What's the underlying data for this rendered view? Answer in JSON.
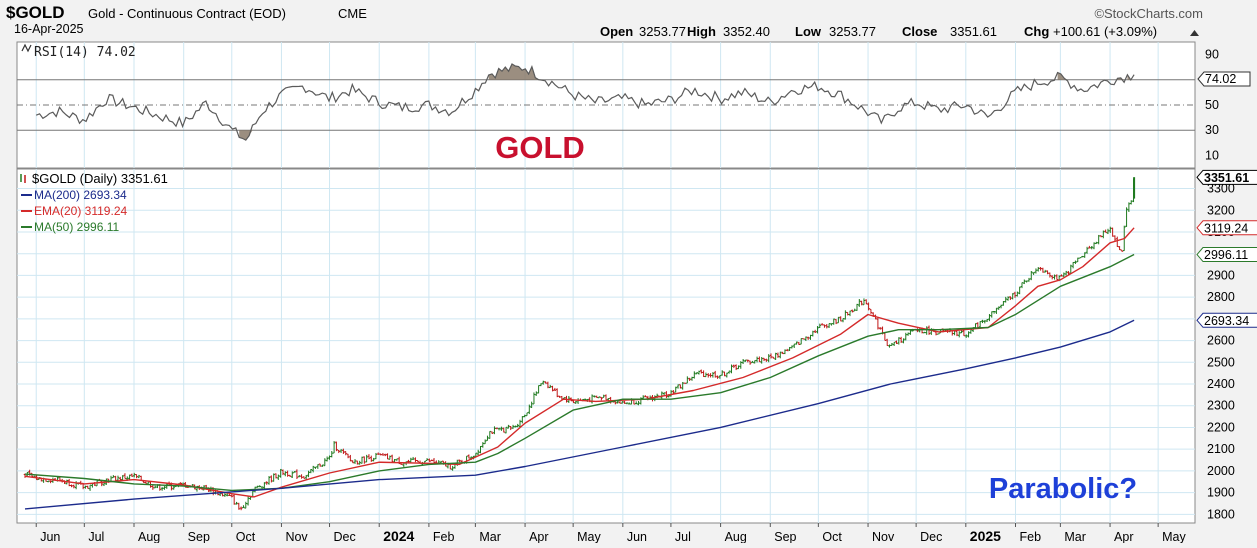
{
  "header": {
    "symbol": "$GOLD",
    "description": "Gold - Continuous Contract (EOD)",
    "exchange": "CME",
    "date": "16-Apr-2025",
    "watermark": "©StockCharts.com",
    "open_label": "Open",
    "open": "3253.77",
    "high_label": "High",
    "high": "3352.40",
    "low_label": "Low",
    "low": "3253.77",
    "close_label": "Close",
    "close": "3351.61",
    "chg_label": "Chg",
    "chg": "+100.61 (+3.09%)"
  },
  "annotations": {
    "title": "GOLD",
    "question": "Parabolic?"
  },
  "colors": {
    "background": "#f2f2f2",
    "plot_bg": "#ffffff",
    "grid": "#cfe7f2",
    "price_up": "#1f7a1f",
    "price_down": "#c01818",
    "ma200": "#1c2b8c",
    "ema20": "#d42a2a",
    "ma50": "#2b7a2b",
    "rsi": "#5a5a5a",
    "rsi_fill": "#8a7a6a",
    "gold_text": "#c8102e",
    "parabolic_text": "#1e40d8"
  },
  "chart_data": [
    {
      "type": "line",
      "title": "RSI(14) 74.02",
      "series": [
        {
          "name": "RSI(14)",
          "last": "74.02",
          "x": [
            "2023-06-01",
            "2023-06-15",
            "2023-07-01",
            "2023-07-15",
            "2023-08-01",
            "2023-08-15",
            "2023-09-01",
            "2023-09-15",
            "2023-10-01",
            "2023-10-10",
            "2023-10-20",
            "2023-11-01",
            "2023-11-15",
            "2023-12-01",
            "2023-12-15",
            "2024-01-01",
            "2024-01-15",
            "2024-02-01",
            "2024-02-15",
            "2024-03-01",
            "2024-03-10",
            "2024-03-20",
            "2024-04-01",
            "2024-04-15",
            "2024-05-01",
            "2024-05-15",
            "2024-06-01",
            "2024-06-15",
            "2024-07-01",
            "2024-07-15",
            "2024-08-01",
            "2024-08-15",
            "2024-09-01",
            "2024-09-15",
            "2024-10-01",
            "2024-10-15",
            "2024-11-01",
            "2024-11-10",
            "2024-11-20",
            "2024-12-01",
            "2024-12-15",
            "2025-01-01",
            "2025-01-15",
            "2025-02-01",
            "2025-02-15",
            "2025-03-01",
            "2025-03-15",
            "2025-04-01",
            "2025-04-08",
            "2025-04-16"
          ],
          "values": [
            42,
            45,
            38,
            55,
            48,
            42,
            35,
            52,
            30,
            22,
            45,
            58,
            65,
            55,
            62,
            52,
            48,
            50,
            45,
            62,
            75,
            78,
            80,
            70,
            58,
            52,
            55,
            50,
            54,
            62,
            55,
            60,
            52,
            62,
            65,
            58,
            44,
            36,
            48,
            52,
            46,
            50,
            40,
            60,
            68,
            72,
            62,
            70,
            72,
            74.02
          ]
        }
      ],
      "ylim": [
        0,
        100
      ],
      "yticks": [
        10,
        30,
        50,
        70,
        90
      ],
      "reference_lines": [
        30,
        50,
        70
      ],
      "last_value_label": "74.02"
    },
    {
      "type": "line",
      "title": "$GOLD (Daily) 3351.61",
      "legend_placement": "top-left",
      "x_tick_labels": [
        "Jun",
        "Jul",
        "Aug",
        "Sep",
        "Oct",
        "Nov",
        "Dec",
        "2024",
        "Feb",
        "Mar",
        "Apr",
        "May",
        "Jun",
        "Jul",
        "Aug",
        "Sep",
        "Oct",
        "Nov",
        "Dec",
        "2025",
        "Feb",
        "Mar",
        "Apr",
        "May"
      ],
      "x_tick_dates": [
        "2023-06-01",
        "2023-07-01",
        "2023-08-01",
        "2023-09-01",
        "2023-10-01",
        "2023-11-01",
        "2023-12-01",
        "2024-01-01",
        "2024-02-01",
        "2024-03-01",
        "2024-04-01",
        "2024-05-01",
        "2024-06-01",
        "2024-07-01",
        "2024-08-01",
        "2024-09-01",
        "2024-10-01",
        "2024-11-01",
        "2024-12-01",
        "2025-01-01",
        "2025-02-01",
        "2025-03-01",
        "2025-04-01",
        "2025-05-01"
      ],
      "bold_x_ticks": [
        "2024",
        "2025"
      ],
      "ylim": [
        1760,
        3390
      ],
      "yticks": [
        1800,
        1900,
        2000,
        2100,
        2200,
        2300,
        2400,
        2500,
        2600,
        2700,
        2800,
        2900,
        3000,
        3100,
        3200,
        3300
      ],
      "grid": true,
      "series": [
        {
          "name": "$GOLD (Daily)",
          "legend_label": "$GOLD (Daily) 3351.61",
          "last_label": "3351.61",
          "x": [
            "2023-05-25",
            "2023-06-01",
            "2023-06-15",
            "2023-07-01",
            "2023-07-15",
            "2023-08-01",
            "2023-08-15",
            "2023-09-01",
            "2023-09-15",
            "2023-10-01",
            "2023-10-06",
            "2023-10-15",
            "2023-11-01",
            "2023-11-15",
            "2023-12-01",
            "2023-12-04",
            "2023-12-15",
            "2024-01-01",
            "2024-01-15",
            "2024-02-01",
            "2024-02-15",
            "2024-03-01",
            "2024-03-10",
            "2024-03-25",
            "2024-04-01",
            "2024-04-12",
            "2024-04-22",
            "2024-05-01",
            "2024-05-20",
            "2024-06-01",
            "2024-06-15",
            "2024-07-01",
            "2024-07-17",
            "2024-08-01",
            "2024-08-15",
            "2024-09-01",
            "2024-09-15",
            "2024-10-01",
            "2024-10-15",
            "2024-10-30",
            "2024-11-14",
            "2024-12-01",
            "2024-12-15",
            "2025-01-01",
            "2025-01-15",
            "2025-02-01",
            "2025-02-15",
            "2025-03-01",
            "2025-03-15",
            "2025-04-01",
            "2025-04-08",
            "2025-04-11",
            "2025-04-14",
            "2025-04-16"
          ],
          "values": [
            1985,
            1965,
            1960,
            1925,
            1960,
            1975,
            1925,
            1935,
            1920,
            1875,
            1820,
            1915,
            1995,
            1975,
            2060,
            2120,
            2040,
            2070,
            2040,
            2045,
            2020,
            2080,
            2180,
            2200,
            2260,
            2420,
            2345,
            2320,
            2340,
            2310,
            2330,
            2360,
            2450,
            2440,
            2500,
            2520,
            2570,
            2660,
            2700,
            2790,
            2570,
            2650,
            2640,
            2630,
            2710,
            2820,
            2940,
            2880,
            3000,
            3120,
            2990,
            3210,
            3240,
            3351.61
          ]
        },
        {
          "name": "EMA(20)",
          "legend_label": "EMA(20) 3119.24",
          "last_label": "3119.24",
          "x": [
            "2023-05-25",
            "2023-07-01",
            "2023-08-01",
            "2023-09-01",
            "2023-10-01",
            "2023-10-15",
            "2023-11-01",
            "2023-12-01",
            "2024-01-01",
            "2024-02-01",
            "2024-02-20",
            "2024-03-15",
            "2024-04-01",
            "2024-04-25",
            "2024-05-15",
            "2024-06-15",
            "2024-07-15",
            "2024-08-15",
            "2024-09-15",
            "2024-10-15",
            "2024-11-01",
            "2024-11-20",
            "2024-12-15",
            "2025-01-15",
            "2025-02-01",
            "2025-02-15",
            "2025-03-01",
            "2025-03-15",
            "2025-04-01",
            "2025-04-10",
            "2025-04-16"
          ],
          "values": [
            1975,
            1940,
            1960,
            1935,
            1895,
            1880,
            1925,
            1990,
            2040,
            2035,
            2030,
            2110,
            2220,
            2330,
            2320,
            2330,
            2370,
            2430,
            2520,
            2630,
            2720,
            2680,
            2640,
            2660,
            2760,
            2850,
            2880,
            2940,
            3050,
            3070,
            3119.24
          ]
        },
        {
          "name": "MA(50)",
          "legend_label": "MA(50) 2996.11",
          "last_label": "2996.11",
          "x": [
            "2023-05-25",
            "2023-07-01",
            "2023-08-01",
            "2023-09-01",
            "2023-10-01",
            "2023-11-01",
            "2023-12-01",
            "2024-01-01",
            "2024-02-01",
            "2024-03-01",
            "2024-03-15",
            "2024-04-01",
            "2024-05-01",
            "2024-06-01",
            "2024-07-01",
            "2024-08-01",
            "2024-09-01",
            "2024-10-01",
            "2024-11-01",
            "2024-11-20",
            "2024-12-15",
            "2025-01-15",
            "2025-02-01",
            "2025-03-01",
            "2025-04-01",
            "2025-04-16"
          ],
          "values": [
            1985,
            1965,
            1940,
            1930,
            1910,
            1920,
            1950,
            2000,
            2030,
            2040,
            2080,
            2150,
            2280,
            2330,
            2330,
            2360,
            2430,
            2530,
            2620,
            2650,
            2650,
            2660,
            2720,
            2850,
            2940,
            2996.11
          ]
        },
        {
          "name": "MA(200)",
          "legend_label": "MA(200) 2693.34",
          "last_label": "2693.34",
          "x": [
            "2023-05-25",
            "2023-08-01",
            "2023-11-01",
            "2024-01-01",
            "2024-03-01",
            "2024-04-01",
            "2024-06-01",
            "2024-08-01",
            "2024-10-01",
            "2024-11-15",
            "2025-01-01",
            "2025-02-01",
            "2025-03-01",
            "2025-04-01",
            "2025-04-16"
          ],
          "values": [
            1825,
            1870,
            1920,
            1960,
            1980,
            2020,
            2110,
            2200,
            2310,
            2400,
            2470,
            2520,
            2570,
            2640,
            2693.34
          ]
        }
      ]
    }
  ]
}
